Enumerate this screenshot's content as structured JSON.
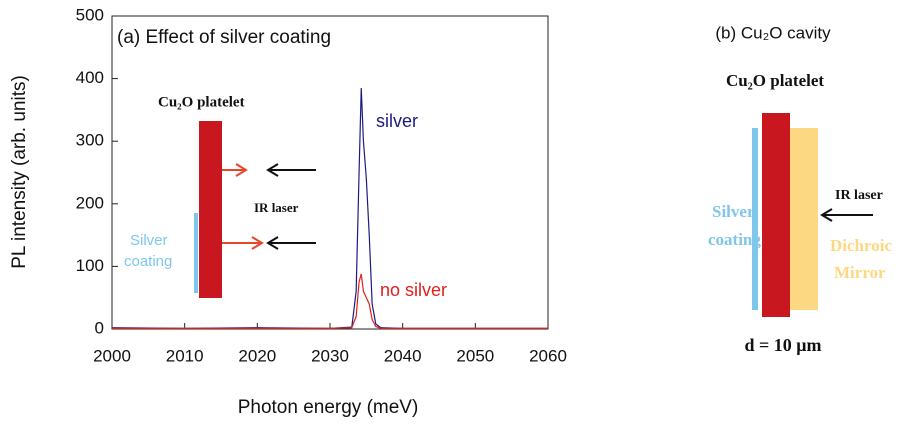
{
  "chart_data": {
    "type": "line",
    "title": "(a) Effect of silver coating",
    "x_label": "Photon energy (meV)",
    "y_label": "PL intensity (arb. units)",
    "x": [
      2000,
      2010,
      2020,
      2030,
      2033,
      2033.6,
      2034.0,
      2034.3,
      2034.6,
      2035.0,
      2035.4,
      2035.8,
      2036.3,
      2037,
      2040,
      2050,
      2060
    ],
    "series": [
      {
        "name": "silver",
        "color": "#1c1c80",
        "values": [
          2,
          1,
          2,
          1,
          3,
          60,
          250,
          385,
          300,
          240,
          150,
          40,
          8,
          2,
          1,
          1,
          1
        ]
      },
      {
        "name": "no silver",
        "color": "#e02020",
        "values": [
          1,
          1,
          1,
          1,
          2,
          20,
          75,
          88,
          60,
          50,
          40,
          15,
          4,
          1,
          1,
          1,
          1
        ]
      }
    ],
    "xlim": [
      2000,
      2060
    ],
    "ylim": [
      0,
      500
    ],
    "xticks": [
      2000,
      2010,
      2020,
      2030,
      2040,
      2050,
      2060
    ],
    "yticks": [
      0,
      100,
      200,
      300,
      400,
      500
    ],
    "grid": false
  },
  "inset": {
    "platelet": "Cu₂O platelet",
    "laser": "IR laser",
    "coating": [
      "Silver",
      "coating"
    ]
  },
  "panel_b": {
    "title": "(b) Cu₂O cavity",
    "platelet": "Cu₂O platelet",
    "laser": "IR laser",
    "coating": [
      "Silver",
      "coating"
    ],
    "mirror": [
      "Dichroic",
      "Mirror"
    ],
    "thickness": "d = 10 μm"
  }
}
